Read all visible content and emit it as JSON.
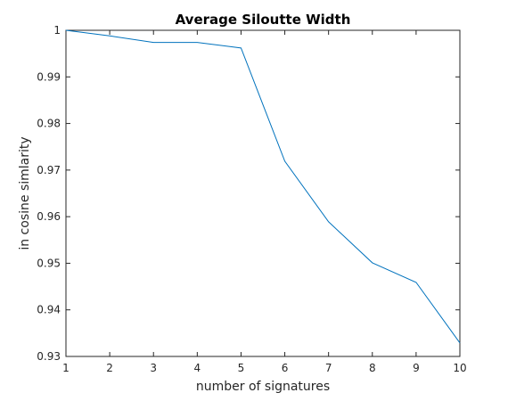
{
  "chart_data": {
    "type": "line",
    "title": "Average Siloutte Width",
    "xlabel": "number of signatures",
    "ylabel": "in cosine simlarity",
    "xlim": [
      1,
      10
    ],
    "ylim": [
      0.93,
      1.0
    ],
    "xticks": [
      "1",
      "2",
      "3",
      "4",
      "5",
      "6",
      "7",
      "8",
      "9",
      "10"
    ],
    "yticks": [
      "0.93",
      "0.94",
      "0.95",
      "0.96",
      "0.97",
      "0.98",
      "0.99",
      "1"
    ],
    "grid": false,
    "series": [
      {
        "x": [
          1,
          2,
          3,
          4,
          5,
          6,
          7,
          8,
          9,
          10
        ],
        "values": [
          1.0,
          0.9988,
          0.9974,
          0.9974,
          0.9962,
          0.9719,
          0.9589,
          0.9501,
          0.9459,
          0.9329
        ],
        "color": "#0072BD"
      }
    ]
  }
}
